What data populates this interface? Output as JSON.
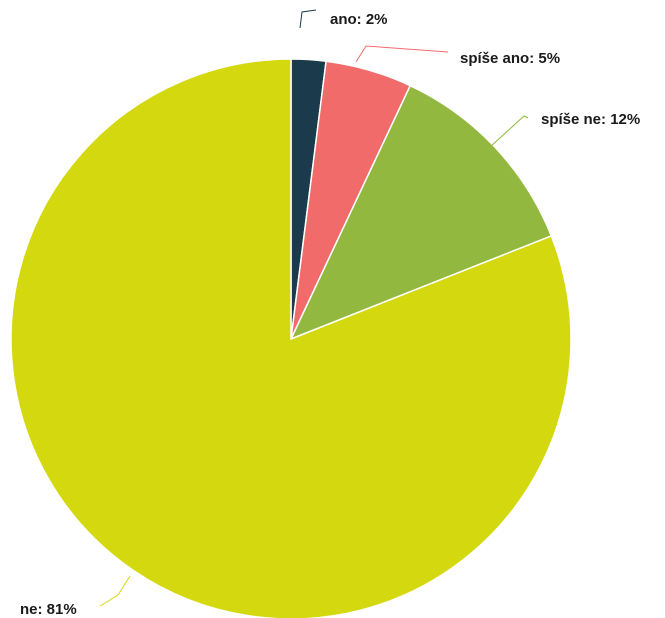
{
  "chart_data": {
    "type": "pie",
    "title": "",
    "slices": [
      {
        "label": "ano",
        "value": 2,
        "display": "ano: 2%",
        "color": "#1b3a4b"
      },
      {
        "label": "spíše ano",
        "value": 5,
        "display": "spíše ano: 5%",
        "color": "#f26b6b"
      },
      {
        "label": "spíše ne",
        "value": 12,
        "display": "spíše ne: 12%",
        "color": "#92b840"
      },
      {
        "label": "ne",
        "value": 81,
        "display": "ne: 81%",
        "color": "#d4d80e"
      }
    ],
    "legend": "none",
    "data_labels": "outside-with-leaders"
  }
}
